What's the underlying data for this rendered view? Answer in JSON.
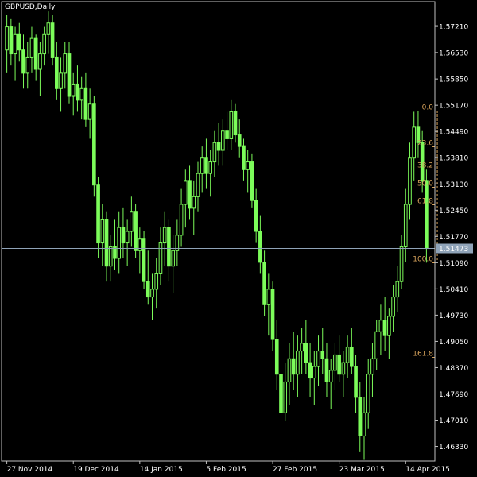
{
  "chart_data": {
    "type": "candlestick",
    "title": "GBPUSD,Daily",
    "colors": {
      "background": "#000000",
      "frame": "#c0c0c0",
      "candle": "#7cfc5a",
      "fib": "#d9a45c",
      "price_line": "#8fa3b8",
      "price_box_bg": "#8fa3b8",
      "price_box_text": "#000000"
    },
    "ylim": [
      1.4595,
      1.5785
    ],
    "yticks": [
      "1.57210",
      "1.56530",
      "1.55850",
      "1.55170",
      "1.54490",
      "1.53810",
      "1.53130",
      "1.52450",
      "1.51770",
      "1.51090",
      "1.50410",
      "1.49730",
      "1.49050",
      "1.48370",
      "1.47690",
      "1.47010",
      "1.46330"
    ],
    "xticks": [
      {
        "label": "27 Nov 2014",
        "index": 0
      },
      {
        "label": "19 Dec 2014",
        "index": 16
      },
      {
        "label": "14 Jan 2015",
        "index": 32
      },
      {
        "label": "5 Feb 2015",
        "index": 48
      },
      {
        "label": "27 Feb 2015",
        "index": 64
      },
      {
        "label": "23 Mar 2015",
        "index": 80
      },
      {
        "label": "14 Apr 2015",
        "index": 96
      }
    ],
    "current_price": "1.51473",
    "fibonacci": {
      "high": 1.5503,
      "low": 1.5109,
      "start_index": 104,
      "levels": [
        {
          "label": "0.0",
          "ratio": 0.0
        },
        {
          "label": "23.6",
          "ratio": 0.236
        },
        {
          "label": "38.2",
          "ratio": 0.382
        },
        {
          "label": "50.0",
          "ratio": 0.5
        },
        {
          "label": "61.8",
          "ratio": 0.618
        },
        {
          "label": "100.0",
          "ratio": 1.0
        },
        {
          "label": "161.8",
          "ratio": 1.618
        }
      ]
    },
    "ohlc": [
      [
        1.566,
        1.575,
        1.56,
        1.572
      ],
      [
        1.572,
        1.574,
        1.562,
        1.565
      ],
      [
        1.565,
        1.572,
        1.558,
        1.57
      ],
      [
        1.57,
        1.573,
        1.563,
        1.566
      ],
      [
        1.566,
        1.57,
        1.556,
        1.56
      ],
      [
        1.56,
        1.568,
        1.556,
        1.564
      ],
      [
        1.564,
        1.572,
        1.56,
        1.569
      ],
      [
        1.569,
        1.57,
        1.558,
        1.561
      ],
      [
        1.561,
        1.568,
        1.554,
        1.565
      ],
      [
        1.565,
        1.572,
        1.562,
        1.57
      ],
      [
        1.57,
        1.576,
        1.565,
        1.573
      ],
      [
        1.573,
        1.575,
        1.562,
        1.564
      ],
      [
        1.564,
        1.568,
        1.553,
        1.556
      ],
      [
        1.556,
        1.564,
        1.55,
        1.56
      ],
      [
        1.56,
        1.568,
        1.556,
        1.565
      ],
      [
        1.565,
        1.568,
        1.552,
        1.554
      ],
      [
        1.554,
        1.56,
        1.549,
        1.557
      ],
      [
        1.557,
        1.562,
        1.55,
        1.553
      ],
      [
        1.553,
        1.559,
        1.548,
        1.556
      ],
      [
        1.556,
        1.56,
        1.546,
        1.548
      ],
      [
        1.548,
        1.556,
        1.543,
        1.552
      ],
      [
        1.552,
        1.554,
        1.528,
        1.531
      ],
      [
        1.531,
        1.533,
        1.512,
        1.516
      ],
      [
        1.516,
        1.526,
        1.51,
        1.522
      ],
      [
        1.522,
        1.524,
        1.506,
        1.51
      ],
      [
        1.51,
        1.518,
        1.506,
        1.515
      ],
      [
        1.515,
        1.522,
        1.509,
        1.512
      ],
      [
        1.512,
        1.524,
        1.508,
        1.52
      ],
      [
        1.52,
        1.525,
        1.512,
        1.516
      ],
      [
        1.516,
        1.522,
        1.51,
        1.519
      ],
      [
        1.519,
        1.528,
        1.515,
        1.524
      ],
      [
        1.524,
        1.526,
        1.512,
        1.514
      ],
      [
        1.514,
        1.52,
        1.508,
        1.517
      ],
      [
        1.517,
        1.519,
        1.504,
        1.506
      ],
      [
        1.506,
        1.514,
        1.5,
        1.502
      ],
      [
        1.502,
        1.508,
        1.496,
        1.504
      ],
      [
        1.504,
        1.512,
        1.499,
        1.508
      ],
      [
        1.508,
        1.52,
        1.505,
        1.516
      ],
      [
        1.516,
        1.524,
        1.51,
        1.52
      ],
      [
        1.52,
        1.522,
        1.506,
        1.51
      ],
      [
        1.51,
        1.518,
        1.503,
        1.514
      ],
      [
        1.514,
        1.522,
        1.51,
        1.518
      ],
      [
        1.518,
        1.53,
        1.515,
        1.526
      ],
      [
        1.526,
        1.535,
        1.52,
        1.532
      ],
      [
        1.532,
        1.536,
        1.522,
        1.525
      ],
      [
        1.525,
        1.532,
        1.518,
        1.528
      ],
      [
        1.528,
        1.537,
        1.524,
        1.534
      ],
      [
        1.534,
        1.541,
        1.529,
        1.538
      ],
      [
        1.538,
        1.543,
        1.53,
        1.534
      ],
      [
        1.534,
        1.54,
        1.528,
        1.537
      ],
      [
        1.537,
        1.545,
        1.533,
        1.542
      ],
      [
        1.542,
        1.547,
        1.536,
        1.54
      ],
      [
        1.54,
        1.548,
        1.536,
        1.545
      ],
      [
        1.545,
        1.55,
        1.54,
        1.543
      ],
      [
        1.543,
        1.553,
        1.54,
        1.55
      ],
      [
        1.55,
        1.552,
        1.542,
        1.544
      ],
      [
        1.544,
        1.548,
        1.538,
        1.541
      ],
      [
        1.541,
        1.543,
        1.532,
        1.535
      ],
      [
        1.535,
        1.54,
        1.529,
        1.537
      ],
      [
        1.537,
        1.539,
        1.525,
        1.527
      ],
      [
        1.527,
        1.53,
        1.516,
        1.519
      ],
      [
        1.519,
        1.523,
        1.508,
        1.511
      ],
      [
        1.511,
        1.514,
        1.497,
        1.5
      ],
      [
        1.5,
        1.508,
        1.492,
        1.504
      ],
      [
        1.504,
        1.506,
        1.488,
        1.491
      ],
      [
        1.491,
        1.496,
        1.478,
        1.482
      ],
      [
        1.482,
        1.488,
        1.468,
        1.472
      ],
      [
        1.472,
        1.485,
        1.47,
        1.48
      ],
      [
        1.48,
        1.49,
        1.474,
        1.486
      ],
      [
        1.486,
        1.493,
        1.478,
        1.482
      ],
      [
        1.482,
        1.492,
        1.476,
        1.488
      ],
      [
        1.488,
        1.494,
        1.482,
        1.49
      ],
      [
        1.49,
        1.496,
        1.482,
        1.485
      ],
      [
        1.485,
        1.49,
        1.476,
        1.481
      ],
      [
        1.481,
        1.488,
        1.474,
        1.484
      ],
      [
        1.484,
        1.492,
        1.479,
        1.488
      ],
      [
        1.488,
        1.494,
        1.482,
        1.486
      ],
      [
        1.486,
        1.49,
        1.476,
        1.48
      ],
      [
        1.48,
        1.486,
        1.473,
        1.483
      ],
      [
        1.483,
        1.49,
        1.478,
        1.487
      ],
      [
        1.487,
        1.492,
        1.48,
        1.482
      ],
      [
        1.482,
        1.488,
        1.476,
        1.485
      ],
      [
        1.485,
        1.492,
        1.481,
        1.489
      ],
      [
        1.489,
        1.494,
        1.482,
        1.484
      ],
      [
        1.484,
        1.487,
        1.472,
        1.476
      ],
      [
        1.476,
        1.48,
        1.462,
        1.466
      ],
      [
        1.466,
        1.476,
        1.46,
        1.472
      ],
      [
        1.472,
        1.486,
        1.468,
        1.482
      ],
      [
        1.482,
        1.49,
        1.476,
        1.486
      ],
      [
        1.486,
        1.496,
        1.483,
        1.493
      ],
      [
        1.493,
        1.5,
        1.487,
        1.496
      ],
      [
        1.496,
        1.502,
        1.488,
        1.492
      ],
      [
        1.492,
        1.499,
        1.486,
        1.497
      ],
      [
        1.497,
        1.505,
        1.493,
        1.502
      ],
      [
        1.502,
        1.51,
        1.498,
        1.506
      ],
      [
        1.506,
        1.518,
        1.504,
        1.515
      ],
      [
        1.515,
        1.53,
        1.511,
        1.526
      ],
      [
        1.526,
        1.542,
        1.522,
        1.538
      ],
      [
        1.538,
        1.55,
        1.532,
        1.546
      ],
      [
        1.546,
        1.5503,
        1.538,
        1.542
      ],
      [
        1.542,
        1.545,
        1.529,
        1.532
      ],
      [
        1.532,
        1.535,
        1.5109,
        1.5147
      ]
    ]
  }
}
